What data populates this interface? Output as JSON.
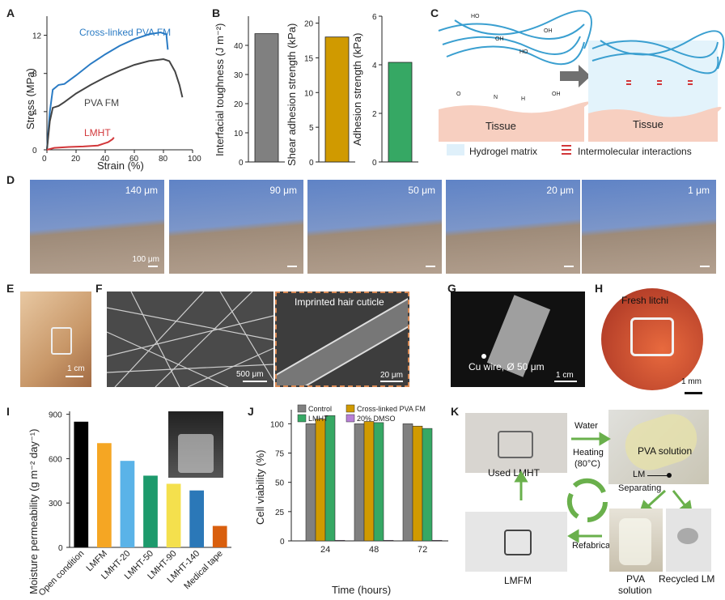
{
  "panel_labels": [
    "A",
    "B",
    "C",
    "D",
    "E",
    "F",
    "G",
    "H",
    "I",
    "J",
    "K"
  ],
  "colors": {
    "blue": "#2a7bc4",
    "gray": "#444444",
    "red": "#d2373a",
    "gold": "#d09a00",
    "green": "#36a864"
  },
  "panel_A": {
    "xlabel": "Strain (%)",
    "ylabel": "Stress (MPa)",
    "series_labels": [
      "Cross-linked PVA FM",
      "PVA FM",
      "LMHT"
    ],
    "xticks": [
      "0",
      "20",
      "40",
      "60",
      "80",
      "100"
    ],
    "yticks": [
      "0",
      "4",
      "8",
      "12"
    ]
  },
  "panel_B": {
    "ylabels": [
      "Interfacial toughness (J m⁻²)",
      "Shear adhesion strength (kPa)",
      "Adhesion strength (kPa)"
    ],
    "ticks1": [
      "0",
      "10",
      "20",
      "30",
      "40"
    ],
    "ticks2": [
      "0",
      "5",
      "10",
      "15",
      "20"
    ],
    "ticks3": [
      "0",
      "2",
      "4",
      "6"
    ]
  },
  "panel_C": {
    "tissue": "Tissue",
    "legend_matrix": "Hydrogel matrix",
    "legend_inter": "Intermolecular interactions",
    "chem": [
      "HO",
      "OH",
      "O",
      "H",
      "N",
      "OH",
      "O"
    ]
  },
  "panel_D": {
    "thicknesses": [
      "140 μm",
      "90 μm",
      "50 μm",
      "20 μm",
      "1 μm"
    ],
    "scale": "100 μm"
  },
  "panel_E": {
    "scale": "1 cm"
  },
  "panel_F": {
    "scale_left": "500 μm",
    "inset_title": "Imprinted hair cuticle",
    "scale_right": "20 μm"
  },
  "panel_G": {
    "wire": "Cu wire, Ø 50 μm",
    "scale": "1 cm"
  },
  "panel_H": {
    "title": "Fresh litchi",
    "scale": "1 mm"
  },
  "panel_K": {
    "used": "Used LMHT",
    "water": "Water",
    "heating": "Heating",
    "temp": "(80°C)",
    "pva": "PVA solution",
    "lm": "LM",
    "separating": "Separating",
    "refab": "Refabrication",
    "lmfm": "LMFM",
    "pva_sol_1": "PVA",
    "pva_sol_2": "solution",
    "recycled": "Recycled LM"
  },
  "chart_data": [
    {
      "panel": "A",
      "type": "line",
      "xlabel": "Strain (%)",
      "ylabel": "Stress (MPa)",
      "xlim": [
        0,
        100
      ],
      "ylim": [
        0,
        14
      ],
      "series": [
        {
          "name": "Cross-linked PVA FM",
          "x": [
            0,
            2,
            4,
            8,
            12,
            20,
            30,
            40,
            50,
            60,
            70,
            78,
            82,
            83
          ],
          "y": [
            0,
            4.0,
            6.3,
            6.8,
            6.9,
            7.8,
            9.0,
            10.0,
            10.9,
            11.6,
            12.1,
            12.3,
            12.1,
            10.5
          ]
        },
        {
          "name": "PVA FM",
          "x": [
            0,
            2,
            4,
            8,
            12,
            20,
            30,
            40,
            50,
            60,
            70,
            80,
            84,
            88,
            91,
            93
          ],
          "y": [
            0,
            3.0,
            4.4,
            4.6,
            5.0,
            5.9,
            6.8,
            7.6,
            8.3,
            8.9,
            9.3,
            9.5,
            9.3,
            8.2,
            6.8,
            5.5
          ]
        },
        {
          "name": "LMHT",
          "x": [
            0,
            5,
            15,
            25,
            35,
            42,
            45,
            46
          ],
          "y": [
            0,
            0.2,
            0.3,
            0.35,
            0.45,
            0.8,
            1.1,
            1.3
          ]
        }
      ]
    },
    {
      "panel": "B",
      "type": "bar",
      "categories": [
        "Interfacial toughness",
        "Shear adhesion strength",
        "Adhesion strength"
      ],
      "values": [
        44,
        18,
        4.1
      ],
      "units": [
        "J m⁻²",
        "kPa",
        "kPa"
      ],
      "ylims": [
        [
          0,
          50
        ],
        [
          0,
          21
        ],
        [
          0,
          6
        ]
      ]
    },
    {
      "panel": "I",
      "type": "bar",
      "xlabel": "",
      "ylabel": "Moisture permeability (g m⁻² day⁻¹)",
      "ylim": [
        0,
        920
      ],
      "categories": [
        "Open condition",
        "LMFM",
        "LMHT-20",
        "LMHT-50",
        "LMHT-90",
        "LMHT-140",
        "Medical tape"
      ],
      "values": [
        850,
        705,
        585,
        485,
        430,
        385,
        145
      ],
      "bar_colors": [
        "#000000",
        "#f5a623",
        "#5ab3e8",
        "#1d9a6c",
        "#f4e04d",
        "#2b78b8",
        "#d95f0e"
      ],
      "yticks": [
        "0",
        "300",
        "600",
        "900"
      ]
    },
    {
      "panel": "J",
      "type": "bar",
      "xlabel": "Time (hours)",
      "ylabel": "Cell viability (%)",
      "ylim": [
        0,
        112
      ],
      "categories": [
        "24",
        "48",
        "72"
      ],
      "yticks": [
        "0",
        "25",
        "50",
        "75",
        "100"
      ],
      "series": [
        {
          "name": "Control",
          "color": "#808080",
          "values": [
            100,
            100,
            100
          ]
        },
        {
          "name": "Cross-linked PVA FM",
          "color": "#d09a00",
          "values": [
            104,
            102,
            98
          ]
        },
        {
          "name": "LMHT",
          "color": "#36a864",
          "values": [
            107,
            101,
            96
          ]
        },
        {
          "name": "20% DMSO",
          "color": "#b77fd6",
          "values": [
            0.5,
            0.5,
            0.5
          ]
        }
      ]
    }
  ]
}
